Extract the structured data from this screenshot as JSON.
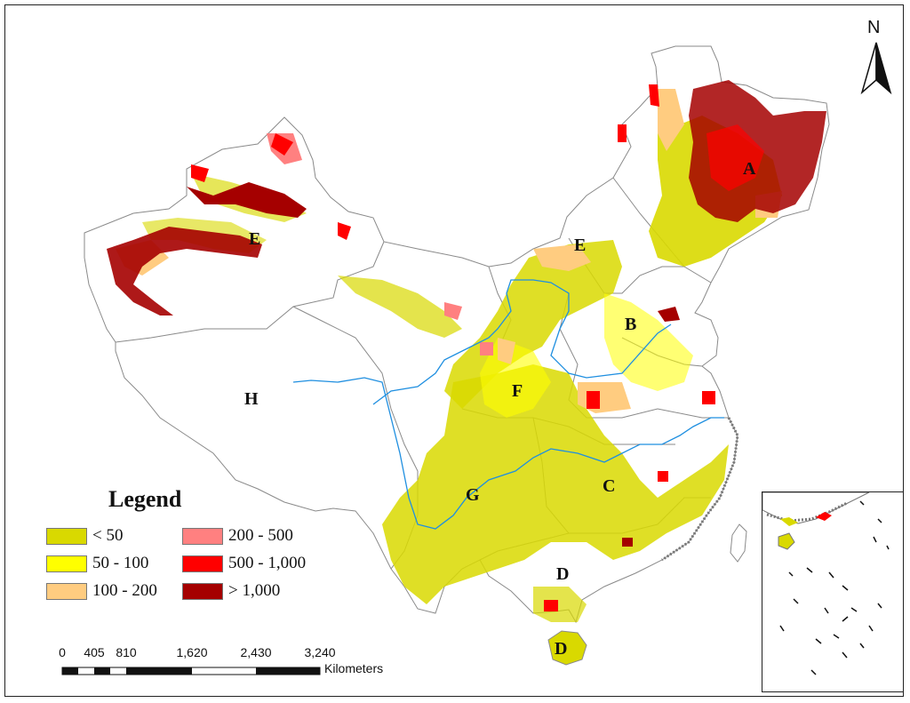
{
  "north_label": "N",
  "legend": {
    "title": "Legend",
    "items": [
      {
        "label": "< 50",
        "color": "#d9d900"
      },
      {
        "label": "50 - 100",
        "color": "#ffff00"
      },
      {
        "label": "100 - 200",
        "color": "#ffcc80"
      },
      {
        "label": "200 - 500",
        "color": "#ff8080"
      },
      {
        "label": "500 - 1,000",
        "color": "#ff0000"
      },
      {
        "label": "> 1,000",
        "color": "#a50000"
      }
    ]
  },
  "scale_bar": {
    "ticks": [
      "0",
      "405",
      "810",
      "1,620",
      "2,430",
      "3,240"
    ],
    "unit": "Kilometers"
  },
  "regions": [
    "A",
    "B",
    "C",
    "D",
    "D",
    "E",
    "E",
    "F",
    "G",
    "H"
  ],
  "colors": {
    "boundary": "#8a8a8a",
    "river": "#1f8fe0",
    "class_lt50": "#d9d900",
    "class_50_100": "#ffff00",
    "class_100_200": "#ffcc80",
    "class_200_500": "#ff8080",
    "class_500_1000": "#ff0000",
    "class_gt1000": "#a50000"
  }
}
